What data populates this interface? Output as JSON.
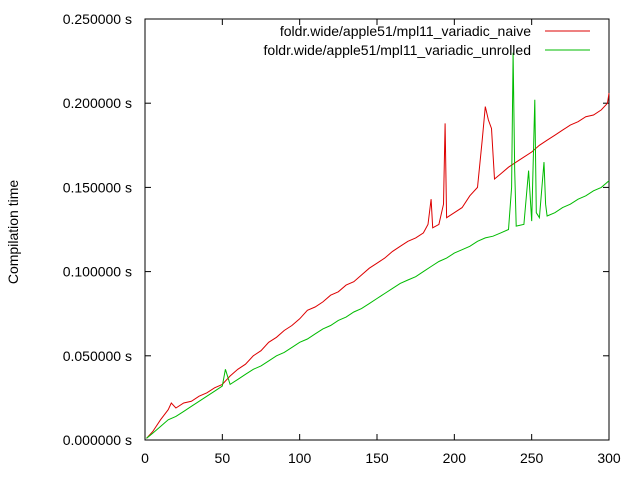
{
  "chart_data": {
    "type": "line",
    "title": "",
    "xlabel": "",
    "ylabel": "Compilation time",
    "xlim": [
      0,
      300
    ],
    "ylim": [
      0,
      0.25
    ],
    "x_ticks": [
      0,
      50,
      100,
      150,
      200,
      250,
      300
    ],
    "x_tick_labels": [
      "0",
      "50",
      "100",
      "150",
      "200",
      "250",
      "300"
    ],
    "y_ticks": [
      0,
      0.05,
      0.1,
      0.15,
      0.2,
      0.25
    ],
    "y_tick_labels": [
      "0.000000 s",
      "0.050000 s",
      "0.100000 s",
      "0.150000 s",
      "0.200000 s",
      "0.250000 s"
    ],
    "grid": false,
    "legend_position": "top-right",
    "series": [
      {
        "name": "foldr.wide/apple51/mpl11_variadic_naive",
        "color": "#dd0000",
        "points": [
          [
            1,
            0.001
          ],
          [
            5,
            0.005
          ],
          [
            10,
            0.012
          ],
          [
            15,
            0.018
          ],
          [
            17,
            0.022
          ],
          [
            20,
            0.019
          ],
          [
            25,
            0.022
          ],
          [
            30,
            0.023
          ],
          [
            35,
            0.026
          ],
          [
            40,
            0.028
          ],
          [
            45,
            0.031
          ],
          [
            50,
            0.033
          ],
          [
            55,
            0.038
          ],
          [
            60,
            0.042
          ],
          [
            65,
            0.045
          ],
          [
            70,
            0.05
          ],
          [
            75,
            0.053
          ],
          [
            80,
            0.058
          ],
          [
            85,
            0.061
          ],
          [
            90,
            0.065
          ],
          [
            95,
            0.068
          ],
          [
            100,
            0.072
          ],
          [
            105,
            0.077
          ],
          [
            110,
            0.079
          ],
          [
            115,
            0.082
          ],
          [
            120,
            0.086
          ],
          [
            125,
            0.088
          ],
          [
            130,
            0.092
          ],
          [
            135,
            0.094
          ],
          [
            140,
            0.098
          ],
          [
            145,
            0.102
          ],
          [
            150,
            0.105
          ],
          [
            155,
            0.108
          ],
          [
            160,
            0.112
          ],
          [
            165,
            0.115
          ],
          [
            170,
            0.118
          ],
          [
            175,
            0.12
          ],
          [
            180,
            0.123
          ],
          [
            183,
            0.128
          ],
          [
            185,
            0.143
          ],
          [
            186,
            0.126
          ],
          [
            190,
            0.128
          ],
          [
            193,
            0.14
          ],
          [
            194,
            0.188
          ],
          [
            195,
            0.132
          ],
          [
            200,
            0.135
          ],
          [
            205,
            0.138
          ],
          [
            210,
            0.145
          ],
          [
            215,
            0.15
          ],
          [
            218,
            0.178
          ],
          [
            220,
            0.198
          ],
          [
            222,
            0.19
          ],
          [
            224,
            0.185
          ],
          [
            226,
            0.155
          ],
          [
            230,
            0.158
          ],
          [
            235,
            0.162
          ],
          [
            240,
            0.165
          ],
          [
            245,
            0.168
          ],
          [
            250,
            0.171
          ],
          [
            255,
            0.175
          ],
          [
            260,
            0.178
          ],
          [
            265,
            0.181
          ],
          [
            270,
            0.184
          ],
          [
            275,
            0.187
          ],
          [
            280,
            0.189
          ],
          [
            285,
            0.192
          ],
          [
            290,
            0.193
          ],
          [
            295,
            0.196
          ],
          [
            299,
            0.2
          ],
          [
            300,
            0.206
          ]
        ]
      },
      {
        "name": "foldr.wide/apple51/mpl11_variadic_unrolled",
        "color": "#00bb00",
        "points": [
          [
            1,
            0.001
          ],
          [
            5,
            0.004
          ],
          [
            10,
            0.008
          ],
          [
            15,
            0.012
          ],
          [
            20,
            0.014
          ],
          [
            25,
            0.017
          ],
          [
            30,
            0.02
          ],
          [
            35,
            0.023
          ],
          [
            40,
            0.026
          ],
          [
            45,
            0.029
          ],
          [
            50,
            0.032
          ],
          [
            52,
            0.042
          ],
          [
            55,
            0.033
          ],
          [
            60,
            0.036
          ],
          [
            65,
            0.039
          ],
          [
            70,
            0.042
          ],
          [
            75,
            0.044
          ],
          [
            80,
            0.047
          ],
          [
            85,
            0.05
          ],
          [
            90,
            0.052
          ],
          [
            95,
            0.055
          ],
          [
            100,
            0.058
          ],
          [
            105,
            0.06
          ],
          [
            110,
            0.063
          ],
          [
            115,
            0.066
          ],
          [
            120,
            0.068
          ],
          [
            125,
            0.071
          ],
          [
            130,
            0.073
          ],
          [
            135,
            0.076
          ],
          [
            140,
            0.078
          ],
          [
            145,
            0.081
          ],
          [
            150,
            0.084
          ],
          [
            155,
            0.087
          ],
          [
            160,
            0.09
          ],
          [
            165,
            0.093
          ],
          [
            170,
            0.095
          ],
          [
            175,
            0.097
          ],
          [
            180,
            0.1
          ],
          [
            185,
            0.103
          ],
          [
            190,
            0.106
          ],
          [
            195,
            0.108
          ],
          [
            200,
            0.111
          ],
          [
            205,
            0.113
          ],
          [
            210,
            0.115
          ],
          [
            215,
            0.118
          ],
          [
            220,
            0.12
          ],
          [
            225,
            0.121
          ],
          [
            230,
            0.123
          ],
          [
            235,
            0.125
          ],
          [
            237,
            0.15
          ],
          [
            238,
            0.23
          ],
          [
            239,
            0.16
          ],
          [
            240,
            0.127
          ],
          [
            245,
            0.128
          ],
          [
            248,
            0.16
          ],
          [
            250,
            0.13
          ],
          [
            252,
            0.202
          ],
          [
            253,
            0.135
          ],
          [
            255,
            0.132
          ],
          [
            258,
            0.165
          ],
          [
            259,
            0.14
          ],
          [
            260,
            0.133
          ],
          [
            265,
            0.135
          ],
          [
            270,
            0.138
          ],
          [
            275,
            0.14
          ],
          [
            280,
            0.143
          ],
          [
            285,
            0.145
          ],
          [
            290,
            0.148
          ],
          [
            295,
            0.15
          ],
          [
            300,
            0.154
          ]
        ]
      }
    ]
  }
}
